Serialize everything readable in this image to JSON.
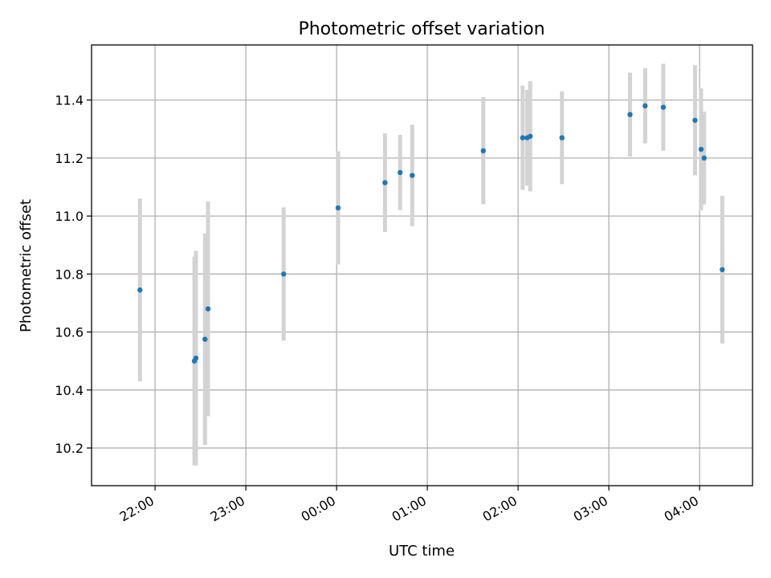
{
  "chart_data": {
    "type": "scatter",
    "title": "Photometric offset variation",
    "xlabel": "UTC time",
    "ylabel": "Photometric offset",
    "xlim": [
      "21:18",
      "04:35"
    ],
    "ylim": [
      10.07,
      11.59
    ],
    "x_ticks": [
      "22:00",
      "23:00",
      "00:00",
      "01:00",
      "02:00",
      "03:00",
      "04:00"
    ],
    "y_ticks": [
      "10.2",
      "10.4",
      "10.6",
      "10.8",
      "11.0",
      "11.2",
      "11.4"
    ],
    "grid": true,
    "legend": "none",
    "series": [
      {
        "x": [
          "21:50",
          "22:26",
          "22:27",
          "22:33",
          "22:35",
          "23:25",
          "00:01",
          "00:32",
          "00:42",
          "00:50",
          "01:37",
          "02:03",
          "02:06",
          "02:08",
          "02:29",
          "03:14",
          "03:24",
          "03:36",
          "03:57",
          "04:01",
          "04:03",
          "04:15"
        ],
        "y": [
          10.745,
          10.5,
          10.51,
          10.575,
          10.68,
          10.8,
          11.028,
          11.115,
          11.15,
          11.14,
          11.225,
          11.27,
          11.27,
          11.275,
          11.27,
          11.35,
          11.38,
          11.375,
          11.33,
          11.23,
          11.2,
          10.815
        ],
        "err": [
          0.315,
          0.36,
          0.37,
          0.365,
          0.37,
          0.23,
          0.195,
          0.17,
          0.13,
          0.175,
          0.185,
          0.18,
          0.165,
          0.19,
          0.16,
          0.145,
          0.13,
          0.15,
          0.19,
          0.21,
          0.16,
          0.255
        ]
      }
    ],
    "colors": {
      "points": "#1f77b4",
      "errorbars": "#d3d3d3",
      "grid": "#b0b0b0"
    }
  }
}
